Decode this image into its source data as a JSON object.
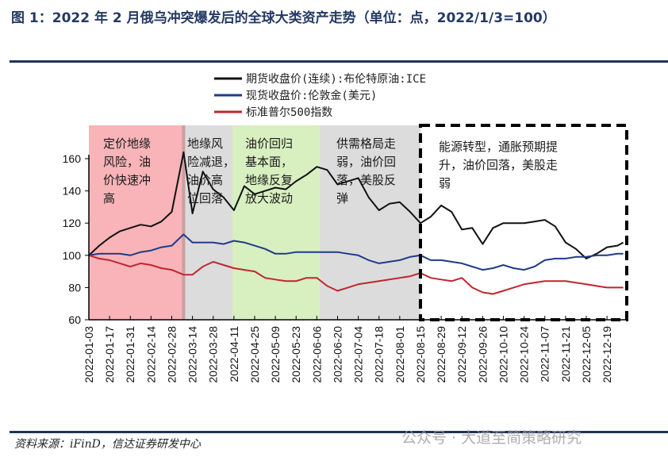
{
  "title": "图 1：2022 年 2 月俄乌冲突爆发后的全球大类资产走势（单位：点，2022/1/3=100）",
  "source": "资料来源：iFinD，信达证券研发中心",
  "watermark": "公众号 · 大道至简策略研究",
  "chart_data": {
    "type": "line",
    "title": "",
    "xlabel": "",
    "ylabel": "",
    "ylim": [
      60,
      170
    ],
    "yticks": [
      "60",
      "80",
      "100",
      "120",
      "140",
      "160"
    ],
    "xlim": [
      "2022-01-03",
      "2022-12-30"
    ],
    "xticks": [
      "2022-01-03",
      "2022-01-17",
      "2022-01-31",
      "2022-02-14",
      "2022-02-28",
      "2022-03-14",
      "2022-03-28",
      "2022-04-11",
      "2022-04-25",
      "2022-05-09",
      "2022-05-23",
      "2022-06-06",
      "2022-06-20",
      "2022-07-04",
      "2022-07-18",
      "2022-08-01",
      "2022-08-15",
      "2022-08-29",
      "2022-09-12",
      "2022-09-26",
      "2022-10-10",
      "2022-10-24",
      "2022-11-07",
      "2022-11-21",
      "2022-12-05",
      "2022-12-19"
    ],
    "legend_position": "top-center",
    "grid": false,
    "x": [
      "2022-01-03",
      "2022-01-10",
      "2022-01-17",
      "2022-01-24",
      "2022-01-31",
      "2022-02-07",
      "2022-02-14",
      "2022-02-21",
      "2022-02-28",
      "2022-03-08",
      "2022-03-14",
      "2022-03-21",
      "2022-03-28",
      "2022-04-04",
      "2022-04-11",
      "2022-04-18",
      "2022-04-25",
      "2022-05-02",
      "2022-05-09",
      "2022-05-16",
      "2022-05-23",
      "2022-05-30",
      "2022-06-06",
      "2022-06-13",
      "2022-06-20",
      "2022-06-27",
      "2022-07-04",
      "2022-07-11",
      "2022-07-18",
      "2022-07-25",
      "2022-08-01",
      "2022-08-08",
      "2022-08-15",
      "2022-08-22",
      "2022-08-29",
      "2022-09-05",
      "2022-09-12",
      "2022-09-19",
      "2022-09-26",
      "2022-10-03",
      "2022-10-10",
      "2022-10-17",
      "2022-10-24",
      "2022-10-31",
      "2022-11-07",
      "2022-11-14",
      "2022-11-21",
      "2022-11-28",
      "2022-12-05",
      "2022-12-12",
      "2022-12-19",
      "2022-12-26",
      "2022-12-30"
    ],
    "series": [
      {
        "name": "期货收盘价(连续):布伦特原油:ICE",
        "color": "#111111",
        "values": [
          100,
          106,
          111,
          115,
          117,
          119,
          118,
          121,
          127,
          164,
          126,
          152,
          141,
          136,
          128,
          143,
          138,
          140,
          142,
          141,
          146,
          150,
          155,
          153,
          144,
          146,
          148,
          136,
          128,
          132,
          133,
          127,
          120,
          124,
          131,
          127,
          116,
          117,
          107,
          117,
          120,
          120,
          120,
          121,
          122,
          118,
          108,
          104,
          98,
          101,
          105,
          106,
          108
        ]
      },
      {
        "name": "现货收盘价:伦敦金(美元)",
        "color": "#1f3a8a",
        "values": [
          100,
          101,
          101,
          101,
          100,
          102,
          103,
          105,
          106,
          113,
          108,
          108,
          108,
          107,
          109,
          108,
          106,
          104,
          101,
          101,
          102,
          102,
          102,
          102,
          102,
          101,
          100,
          97,
          95,
          96,
          97,
          99,
          100,
          97,
          97,
          96,
          95,
          93,
          91,
          92,
          94,
          92,
          91,
          93,
          97,
          98,
          98,
          99,
          99,
          100,
          100,
          101,
          101
        ]
      },
      {
        "name": "标准普尔500指数",
        "color": "#c0262d",
        "values": [
          100,
          98,
          97,
          95,
          93,
          95,
          94,
          92,
          91,
          88,
          88,
          93,
          96,
          94,
          92,
          91,
          90,
          86,
          85,
          84,
          84,
          86,
          86,
          81,
          78,
          80,
          82,
          83,
          84,
          85,
          86,
          87,
          89,
          86,
          85,
          84,
          86,
          80,
          77,
          76,
          78,
          80,
          82,
          83,
          84,
          84,
          84,
          83,
          82,
          81,
          80,
          80,
          80
        ]
      }
    ],
    "regions": [
      {
        "start": "2022-01-03",
        "end": "2022-03-08",
        "color": "#f8b4b8",
        "label": [
          "定价地缘",
          "风险，油",
          "价快速冲",
          "高"
        ]
      },
      {
        "start": "2022-03-08",
        "end": "2022-04-10",
        "color": "#dcdcdc",
        "label": [
          "地缘风",
          "险减退，",
          "油价高",
          "位回落"
        ]
      },
      {
        "start": "2022-04-10",
        "end": "2022-06-08",
        "color": "#d8efc0",
        "label": [
          "油价回归",
          "基本面，",
          "地缘反复",
          "放大波动"
        ]
      },
      {
        "start": "2022-06-08",
        "end": "2022-08-15",
        "color": "#dcdcdc",
        "label": [
          "供需格局走",
          "弱，油价回",
          "落，美股反",
          "弹"
        ]
      },
      {
        "start": "2022-08-15",
        "end": "2022-12-30",
        "color": "dashed-box",
        "label": [
          "能源转型，通胀预期提",
          "升，油价回落，美股走",
          "弱"
        ]
      }
    ]
  }
}
